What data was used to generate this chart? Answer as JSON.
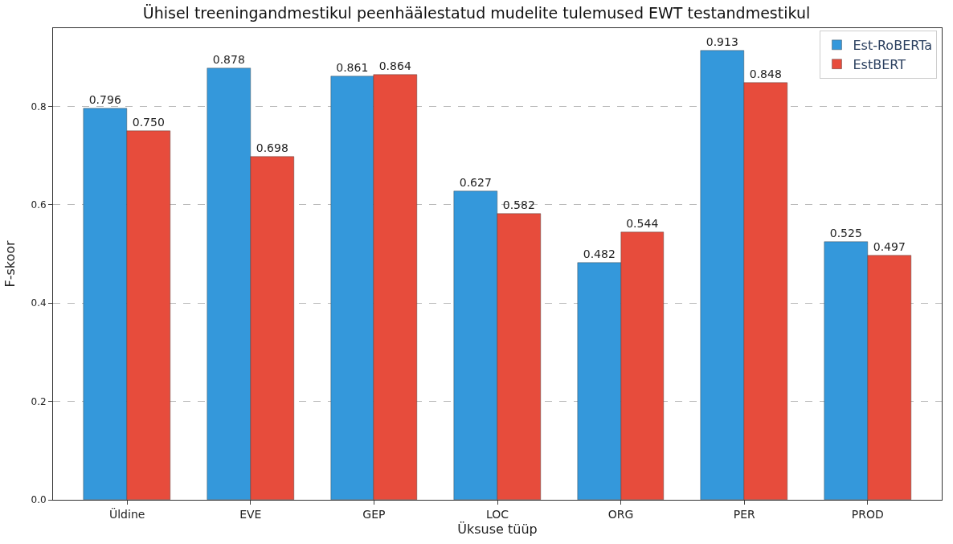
{
  "chart_data": {
    "type": "bar",
    "title": "Ühisel treeningandmestikul peenhäälestatud mudelite tulemused EWT testandmestikul",
    "xlabel": "Üksuse tüüp",
    "ylabel": "F-skoor",
    "categories": [
      "Üldine",
      "EVE",
      "GEP",
      "LOC",
      "ORG",
      "PER",
      "PROD"
    ],
    "series": [
      {
        "name": "Est-RoBERTa",
        "color": "#3498db",
        "values": [
          0.796,
          0.878,
          0.861,
          0.627,
          0.482,
          0.913,
          0.525
        ],
        "value_labels": [
          "0.796",
          "0.878",
          "0.861",
          "0.627",
          "0.482",
          "0.913",
          "0.525"
        ]
      },
      {
        "name": "EstBERT",
        "color": "#e74c3c",
        "values": [
          0.75,
          0.698,
          0.864,
          0.582,
          0.544,
          0.848,
          0.497
        ],
        "value_labels": [
          "0.750",
          "0.698",
          "0.864",
          "0.582",
          "0.544",
          "0.848",
          "0.497"
        ]
      }
    ],
    "ylim": [
      0,
      0.959
    ],
    "yticks": [
      {
        "value": 0,
        "label": "0.0"
      },
      0.2,
      0.4,
      0.6,
      0.8
    ],
    "grid": "y",
    "legend": "top right"
  }
}
